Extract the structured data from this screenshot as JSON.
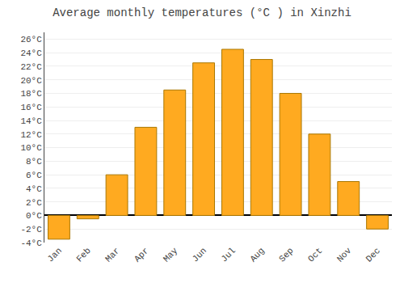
{
  "chart_data": {
    "type": "bar",
    "title": "Average monthly temperatures (°C ) in Xinzhi",
    "categories": [
      "Jan",
      "Feb",
      "Mar",
      "Apr",
      "May",
      "Jun",
      "Jul",
      "Aug",
      "Sep",
      "Oct",
      "Nov",
      "Dec"
    ],
    "values": [
      -3.5,
      -0.5,
      6.0,
      13.0,
      18.5,
      22.5,
      24.5,
      23.0,
      18.0,
      12.0,
      5.0,
      -2.0
    ],
    "color": "#FFAA20",
    "ylim": [
      -4,
      27
    ],
    "yticks": [
      {
        "value": -4,
        "label": "-4°C"
      },
      {
        "value": -2,
        "label": "-2°C"
      },
      {
        "value": 0,
        "label": "0°C"
      },
      {
        "value": 2,
        "label": "2°C"
      },
      {
        "value": 4,
        "label": "4°C"
      },
      {
        "value": 6,
        "label": "6°C"
      },
      {
        "value": 8,
        "label": "8°C"
      },
      {
        "value": 10,
        "label": "10°C"
      },
      {
        "value": 12,
        "label": "12°C"
      },
      {
        "value": 14,
        "label": "14°C"
      },
      {
        "value": 16,
        "label": "16°C"
      },
      {
        "value": 18,
        "label": "18°C"
      },
      {
        "value": 20,
        "label": "20°C"
      },
      {
        "value": 22,
        "label": "22°C"
      },
      {
        "value": 24,
        "label": "24°C"
      },
      {
        "value": 26,
        "label": "26°C"
      }
    ],
    "grid": true
  }
}
